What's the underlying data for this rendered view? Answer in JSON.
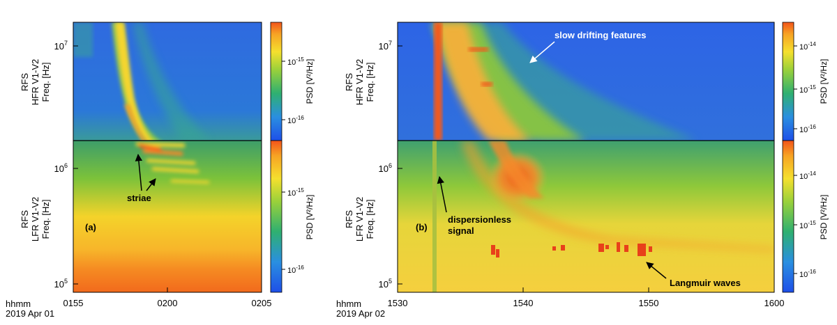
{
  "chart_data": [
    {
      "type": "heatmap",
      "panel_label": "(a)",
      "date_label": "2019 Apr 01",
      "time_label": "hhmm",
      "x_ticks": [
        "0155",
        "0200",
        "0205"
      ],
      "top": {
        "ylabel_lines": [
          "RFS",
          "HFR V1-V2",
          "Freq. [Hz]"
        ],
        "y_ticks": [
          "10",
          "7"
        ],
        "colorbar": {
          "label": "PSD [V²/Hz]",
          "ticks": [
            [
              "10",
              "-15"
            ],
            [
              "10",
              "-16"
            ]
          ]
        }
      },
      "bottom": {
        "ylabel_lines": [
          "RFS",
          "LFR V1-V2",
          "Freq. [Hz]"
        ],
        "y_ticks": [
          [
            "10",
            "6"
          ],
          [
            "10",
            "5"
          ]
        ],
        "colorbar": {
          "label": "PSD [V²/Hz]",
          "ticks": [
            [
              "10",
              "-15"
            ],
            [
              "10",
              "-16"
            ]
          ]
        }
      },
      "annotations": [
        "striae"
      ]
    },
    {
      "type": "heatmap",
      "panel_label": "(b)",
      "date_label": "2019 Apr 02",
      "time_label": "hhmm",
      "x_ticks": [
        "1530",
        "1540",
        "1550",
        "1600"
      ],
      "top": {
        "ylabel_lines": [
          "RFS",
          "HFR V1-V2",
          "Freq. [Hz]"
        ],
        "y_ticks": [
          "10",
          "7"
        ],
        "colorbar": {
          "label": "PSD [V²/Hz]",
          "ticks": [
            [
              "10",
              "-14"
            ],
            [
              "10",
              "-15"
            ],
            [
              "10",
              "-16"
            ]
          ]
        }
      },
      "bottom": {
        "ylabel_lines": [
          "RFS",
          "LFR V1-V2",
          "Freq. [Hz]"
        ],
        "y_ticks": [
          [
            "10",
            "6"
          ],
          [
            "10",
            "5"
          ]
        ],
        "colorbar": {
          "label": "PSD [V²/Hz]",
          "ticks": [
            [
              "10",
              "-14"
            ],
            [
              "10",
              "-15"
            ],
            [
              "10",
              "-16"
            ]
          ]
        }
      },
      "annotations": [
        "slow drifting features",
        "dispersionless",
        "signal",
        "Langmuir waves"
      ]
    }
  ]
}
